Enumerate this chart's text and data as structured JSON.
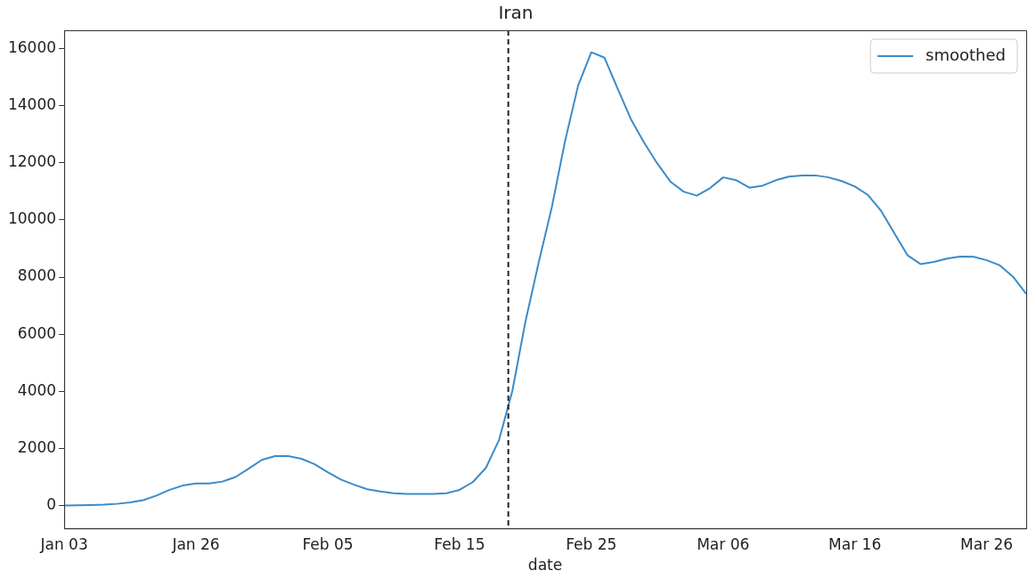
{
  "chart_data": {
    "type": "line",
    "title": "Iran",
    "xlabel": "date",
    "categories": [
      "Jan 03",
      null,
      null,
      null,
      null,
      null,
      null,
      null,
      null,
      null,
      "Jan 26",
      null,
      null,
      null,
      null,
      null,
      null,
      null,
      null,
      null,
      "Feb 05",
      null,
      null,
      null,
      null,
      null,
      null,
      null,
      null,
      null,
      "Feb 15",
      null,
      null,
      null,
      null,
      null,
      null,
      null,
      null,
      null,
      "Feb 25",
      null,
      null,
      null,
      null,
      null,
      null,
      null,
      null,
      null,
      "Mar 06",
      null,
      null,
      null,
      null,
      null,
      null,
      null,
      null,
      null,
      "Mar 16",
      null,
      null,
      null,
      null,
      null,
      null,
      null,
      null,
      null,
      "Mar 26",
      null,
      null,
      null
    ],
    "series": [
      {
        "name": "smoothed",
        "color": "#3b8bc9",
        "values": [
          0,
          10,
          20,
          30,
          60,
          110,
          190,
          350,
          550,
          700,
          770,
          770,
          840,
          1000,
          1290,
          1600,
          1730,
          1730,
          1640,
          1450,
          1170,
          910,
          730,
          570,
          490,
          430,
          410,
          410,
          410,
          430,
          550,
          820,
          1320,
          2300,
          4000,
          6440,
          8500,
          10440,
          12750,
          14710,
          15870,
          15680,
          14590,
          13530,
          12710,
          11980,
          11340,
          10990,
          10850,
          11110,
          11490,
          11390,
          11130,
          11200,
          11390,
          11520,
          11560,
          11560,
          11490,
          11360,
          11170,
          10870,
          10310,
          9530,
          8760,
          8450,
          8530,
          8650,
          8720,
          8710,
          8590,
          8410,
          8010,
          7410
        ]
      }
    ],
    "ylim": [
      -800,
      16640
    ],
    "yticks": [
      0,
      2000,
      4000,
      6000,
      8000,
      10000,
      12000,
      14000,
      16000
    ],
    "grid": false,
    "legend": "top right",
    "marker": "none",
    "line_style": "solid"
  }
}
